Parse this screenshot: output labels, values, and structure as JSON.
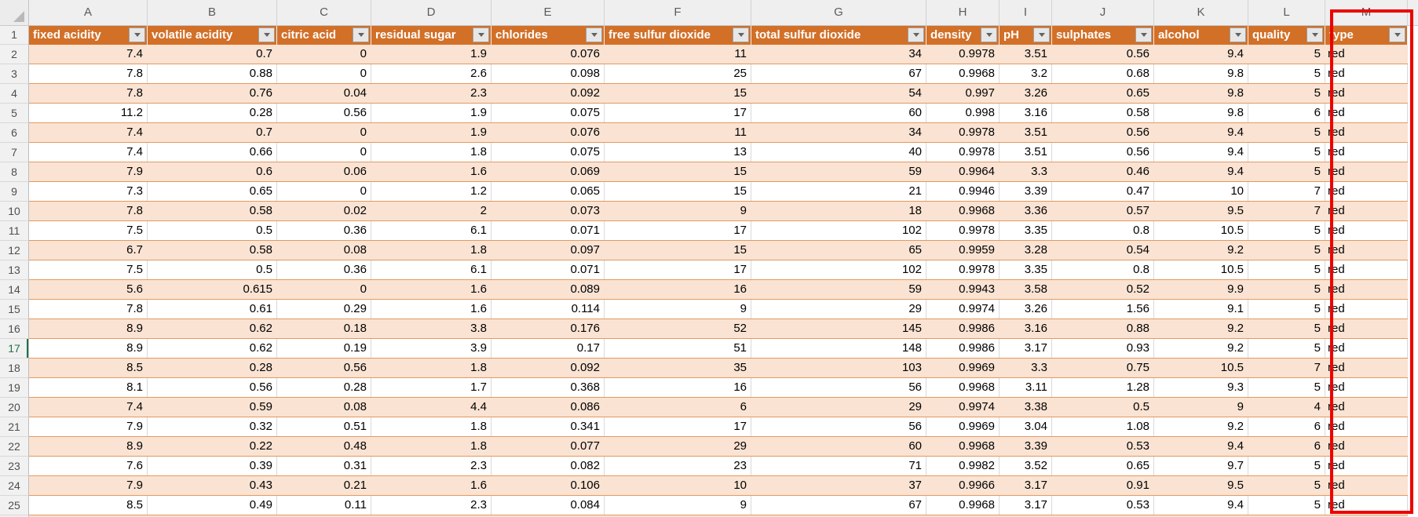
{
  "app": {
    "kind": "excel-like spreadsheet with filtered table"
  },
  "column_letters": [
    "A",
    "B",
    "C",
    "D",
    "E",
    "F",
    "G",
    "H",
    "I",
    "J",
    "K",
    "L",
    "M"
  ],
  "header": {
    "labels": [
      "fixed acidity",
      "volatile acidity",
      "citric acid",
      "residual sugar",
      "chlorides",
      "free sulfur dioxide",
      "total sulfur dioxide",
      "density",
      "pH",
      "sulphates",
      "alcohol",
      "quality",
      "type"
    ]
  },
  "active_row": 17,
  "rows": [
    {
      "n": 2,
      "cells": [
        "7.4",
        "0.7",
        "0",
        "1.9",
        "0.076",
        "11",
        "34",
        "0.9978",
        "3.51",
        "0.56",
        "9.4",
        "5",
        "red"
      ]
    },
    {
      "n": 3,
      "cells": [
        "7.8",
        "0.88",
        "0",
        "2.6",
        "0.098",
        "25",
        "67",
        "0.9968",
        "3.2",
        "0.68",
        "9.8",
        "5",
        "red"
      ]
    },
    {
      "n": 4,
      "cells": [
        "7.8",
        "0.76",
        "0.04",
        "2.3",
        "0.092",
        "15",
        "54",
        "0.997",
        "3.26",
        "0.65",
        "9.8",
        "5",
        "red"
      ]
    },
    {
      "n": 5,
      "cells": [
        "11.2",
        "0.28",
        "0.56",
        "1.9",
        "0.075",
        "17",
        "60",
        "0.998",
        "3.16",
        "0.58",
        "9.8",
        "6",
        "red"
      ]
    },
    {
      "n": 6,
      "cells": [
        "7.4",
        "0.7",
        "0",
        "1.9",
        "0.076",
        "11",
        "34",
        "0.9978",
        "3.51",
        "0.56",
        "9.4",
        "5",
        "red"
      ]
    },
    {
      "n": 7,
      "cells": [
        "7.4",
        "0.66",
        "0",
        "1.8",
        "0.075",
        "13",
        "40",
        "0.9978",
        "3.51",
        "0.56",
        "9.4",
        "5",
        "red"
      ]
    },
    {
      "n": 8,
      "cells": [
        "7.9",
        "0.6",
        "0.06",
        "1.6",
        "0.069",
        "15",
        "59",
        "0.9964",
        "3.3",
        "0.46",
        "9.4",
        "5",
        "red"
      ]
    },
    {
      "n": 9,
      "cells": [
        "7.3",
        "0.65",
        "0",
        "1.2",
        "0.065",
        "15",
        "21",
        "0.9946",
        "3.39",
        "0.47",
        "10",
        "7",
        "red"
      ]
    },
    {
      "n": 10,
      "cells": [
        "7.8",
        "0.58",
        "0.02",
        "2",
        "0.073",
        "9",
        "18",
        "0.9968",
        "3.36",
        "0.57",
        "9.5",
        "7",
        "red"
      ]
    },
    {
      "n": 11,
      "cells": [
        "7.5",
        "0.5",
        "0.36",
        "6.1",
        "0.071",
        "17",
        "102",
        "0.9978",
        "3.35",
        "0.8",
        "10.5",
        "5",
        "red"
      ]
    },
    {
      "n": 12,
      "cells": [
        "6.7",
        "0.58",
        "0.08",
        "1.8",
        "0.097",
        "15",
        "65",
        "0.9959",
        "3.28",
        "0.54",
        "9.2",
        "5",
        "red"
      ]
    },
    {
      "n": 13,
      "cells": [
        "7.5",
        "0.5",
        "0.36",
        "6.1",
        "0.071",
        "17",
        "102",
        "0.9978",
        "3.35",
        "0.8",
        "10.5",
        "5",
        "red"
      ]
    },
    {
      "n": 14,
      "cells": [
        "5.6",
        "0.615",
        "0",
        "1.6",
        "0.089",
        "16",
        "59",
        "0.9943",
        "3.58",
        "0.52",
        "9.9",
        "5",
        "red"
      ]
    },
    {
      "n": 15,
      "cells": [
        "7.8",
        "0.61",
        "0.29",
        "1.6",
        "0.114",
        "9",
        "29",
        "0.9974",
        "3.26",
        "1.56",
        "9.1",
        "5",
        "red"
      ]
    },
    {
      "n": 16,
      "cells": [
        "8.9",
        "0.62",
        "0.18",
        "3.8",
        "0.176",
        "52",
        "145",
        "0.9986",
        "3.16",
        "0.88",
        "9.2",
        "5",
        "red"
      ]
    },
    {
      "n": 17,
      "cells": [
        "8.9",
        "0.62",
        "0.19",
        "3.9",
        "0.17",
        "51",
        "148",
        "0.9986",
        "3.17",
        "0.93",
        "9.2",
        "5",
        "red"
      ]
    },
    {
      "n": 18,
      "cells": [
        "8.5",
        "0.28",
        "0.56",
        "1.8",
        "0.092",
        "35",
        "103",
        "0.9969",
        "3.3",
        "0.75",
        "10.5",
        "7",
        "red"
      ]
    },
    {
      "n": 19,
      "cells": [
        "8.1",
        "0.56",
        "0.28",
        "1.7",
        "0.368",
        "16",
        "56",
        "0.9968",
        "3.11",
        "1.28",
        "9.3",
        "5",
        "red"
      ]
    },
    {
      "n": 20,
      "cells": [
        "7.4",
        "0.59",
        "0.08",
        "4.4",
        "0.086",
        "6",
        "29",
        "0.9974",
        "3.38",
        "0.5",
        "9",
        "4",
        "red"
      ]
    },
    {
      "n": 21,
      "cells": [
        "7.9",
        "0.32",
        "0.51",
        "1.8",
        "0.341",
        "17",
        "56",
        "0.9969",
        "3.04",
        "1.08",
        "9.2",
        "6",
        "red"
      ]
    },
    {
      "n": 22,
      "cells": [
        "8.9",
        "0.22",
        "0.48",
        "1.8",
        "0.077",
        "29",
        "60",
        "0.9968",
        "3.39",
        "0.53",
        "9.4",
        "6",
        "red"
      ]
    },
    {
      "n": 23,
      "cells": [
        "7.6",
        "0.39",
        "0.31",
        "2.3",
        "0.082",
        "23",
        "71",
        "0.9982",
        "3.52",
        "0.65",
        "9.7",
        "5",
        "red"
      ]
    },
    {
      "n": 24,
      "cells": [
        "7.9",
        "0.43",
        "0.21",
        "1.6",
        "0.106",
        "10",
        "37",
        "0.9966",
        "3.17",
        "0.91",
        "9.5",
        "5",
        "red"
      ]
    },
    {
      "n": 25,
      "cells": [
        "8.5",
        "0.49",
        "0.11",
        "2.3",
        "0.084",
        "9",
        "67",
        "0.9968",
        "3.17",
        "0.53",
        "9.4",
        "5",
        "red"
      ]
    }
  ],
  "highlight": {
    "column_letter": "M",
    "column_label": "type",
    "border_color": "#EC0000"
  },
  "icons": {
    "filter": "chevron-down",
    "select_all": "triangle"
  },
  "colors": {
    "header_fill": "#D27028",
    "banded_row": "#FAE3D3",
    "row_border": "#E39960",
    "active_row_accent": "#217346",
    "highlight_red": "#EC0000"
  }
}
